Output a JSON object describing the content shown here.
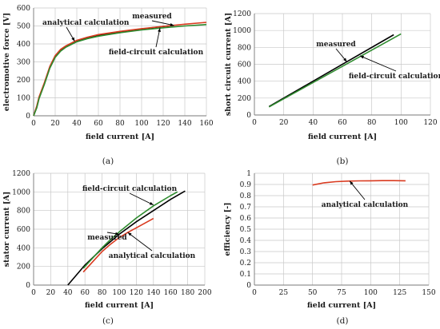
{
  "chart_data": [
    {
      "type": "line",
      "panel_label": "(a)",
      "xlabel": "field current [A]",
      "ylabel": "electromotive force [V]",
      "xlim": [
        0,
        160
      ],
      "ylim": [
        0,
        600
      ],
      "xticks": [
        0,
        20,
        40,
        60,
        80,
        100,
        120,
        140,
        160
      ],
      "yticks": [
        0,
        100,
        200,
        300,
        400,
        500,
        600
      ],
      "grid": true,
      "series": [
        {
          "name": "measured",
          "color": "#000000",
          "x": [
            0,
            3,
            5,
            10,
            15,
            20,
            25,
            30,
            40,
            50,
            60,
            80,
            100,
            120,
            130
          ],
          "y": [
            0,
            50,
            100,
            180,
            270,
            330,
            365,
            385,
            415,
            435,
            448,
            467,
            483,
            497,
            503
          ]
        },
        {
          "name": "analytical calculation",
          "color": "#d93a1f",
          "x": [
            0,
            3,
            5,
            10,
            15,
            20,
            25,
            30,
            40,
            50,
            60,
            80,
            100,
            120,
            140,
            160
          ],
          "y": [
            0,
            55,
            105,
            185,
            275,
            335,
            370,
            390,
            420,
            438,
            452,
            470,
            485,
            498,
            510,
            520
          ]
        },
        {
          "name": "field-circuit calculation",
          "color": "#2e8b2e",
          "x": [
            0,
            3,
            5,
            10,
            15,
            20,
            25,
            30,
            40,
            50,
            60,
            80,
            100,
            120,
            140,
            160
          ],
          "y": [
            0,
            45,
            95,
            175,
            265,
            325,
            360,
            382,
            412,
            430,
            443,
            462,
            478,
            490,
            500,
            508
          ]
        }
      ],
      "annotations": [
        {
          "text": "analytical calculation",
          "points_to": [
            38,
            415
          ]
        },
        {
          "text": "measured",
          "points_to": [
            130,
            503
          ]
        },
        {
          "text": "field-circuit  calculation",
          "points_to": [
            117,
            488
          ]
        }
      ]
    },
    {
      "type": "line",
      "panel_label": "(b)",
      "xlabel": "field current [A]",
      "ylabel": "short circuit current [A]",
      "xlim": [
        0,
        120
      ],
      "ylim": [
        0,
        1200
      ],
      "xticks": [
        0,
        20,
        40,
        60,
        80,
        100,
        120
      ],
      "yticks": [
        0,
        200,
        400,
        600,
        800,
        1000,
        1200
      ],
      "grid": true,
      "series": [
        {
          "name": "measured",
          "color": "#000000",
          "x": [
            10,
            95
          ],
          "y": [
            100,
            950
          ]
        },
        {
          "name": "field-circuit calculation",
          "color": "#2e8b2e",
          "x": [
            10,
            100
          ],
          "y": [
            95,
            960
          ]
        }
      ],
      "annotations": [
        {
          "text": "measured",
          "points_to": [
            63,
            630
          ]
        },
        {
          "text": "field-circuit calculation",
          "points_to": [
            72,
            700
          ]
        }
      ]
    },
    {
      "type": "line",
      "panel_label": "(c)",
      "xlabel": "field current [A]",
      "ylabel": "stator current [A]",
      "xlim": [
        0,
        200
      ],
      "ylim": [
        0,
        1200
      ],
      "xticks": [
        0,
        20,
        40,
        60,
        80,
        100,
        120,
        140,
        160,
        180,
        200
      ],
      "yticks": [
        0,
        200,
        400,
        600,
        800,
        1000,
        1200
      ],
      "grid": true,
      "series": [
        {
          "name": "measured",
          "color": "#000000",
          "x": [
            40,
            60,
            80,
            100,
            120,
            140,
            160,
            177
          ],
          "y": [
            0,
            215,
            390,
            545,
            680,
            800,
            920,
            1010
          ]
        },
        {
          "name": "analytical calculation",
          "color": "#d93a1f",
          "x": [
            58,
            70,
            80,
            90,
            100,
            110,
            120,
            130,
            140
          ],
          "y": [
            140,
            260,
            360,
            440,
            510,
            565,
            615,
            665,
            715
          ]
        },
        {
          "name": "field-circuit calculation",
          "color": "#2e8b2e",
          "x": [
            58,
            70,
            80,
            90,
            100,
            120,
            140,
            160,
            168
          ],
          "y": [
            180,
            300,
            400,
            490,
            570,
            720,
            850,
            960,
            1000
          ]
        }
      ],
      "annotations": [
        {
          "text": "field-circuit calculation",
          "points_to": [
            140,
            860
          ]
        },
        {
          "text": "measured",
          "points_to": [
            100,
            545
          ]
        },
        {
          "text": "analytical calculation",
          "points_to": [
            110,
            565
          ]
        }
      ]
    },
    {
      "type": "line",
      "panel_label": "(d)",
      "xlabel": "field current [A]",
      "ylabel": "efficiency [-]",
      "xlim": [
        0,
        150
      ],
      "ylim": [
        0,
        1.0
      ],
      "xticks": [
        0,
        25,
        50,
        75,
        100,
        125,
        150
      ],
      "yticks": [
        0,
        0.1,
        0.2,
        0.3,
        0.4,
        0.5,
        0.6,
        0.7,
        0.8,
        0.9,
        1.0
      ],
      "grid": true,
      "series": [
        {
          "name": "analytical calculation",
          "color": "#d93a1f",
          "x": [
            50,
            60,
            70,
            80,
            90,
            100,
            110,
            120,
            130
          ],
          "y": [
            0.895,
            0.915,
            0.925,
            0.93,
            0.932,
            0.933,
            0.934,
            0.934,
            0.933
          ]
        }
      ],
      "annotations": [
        {
          "text": "analytical calculation",
          "points_to": [
            82,
            0.93
          ]
        }
      ]
    }
  ]
}
